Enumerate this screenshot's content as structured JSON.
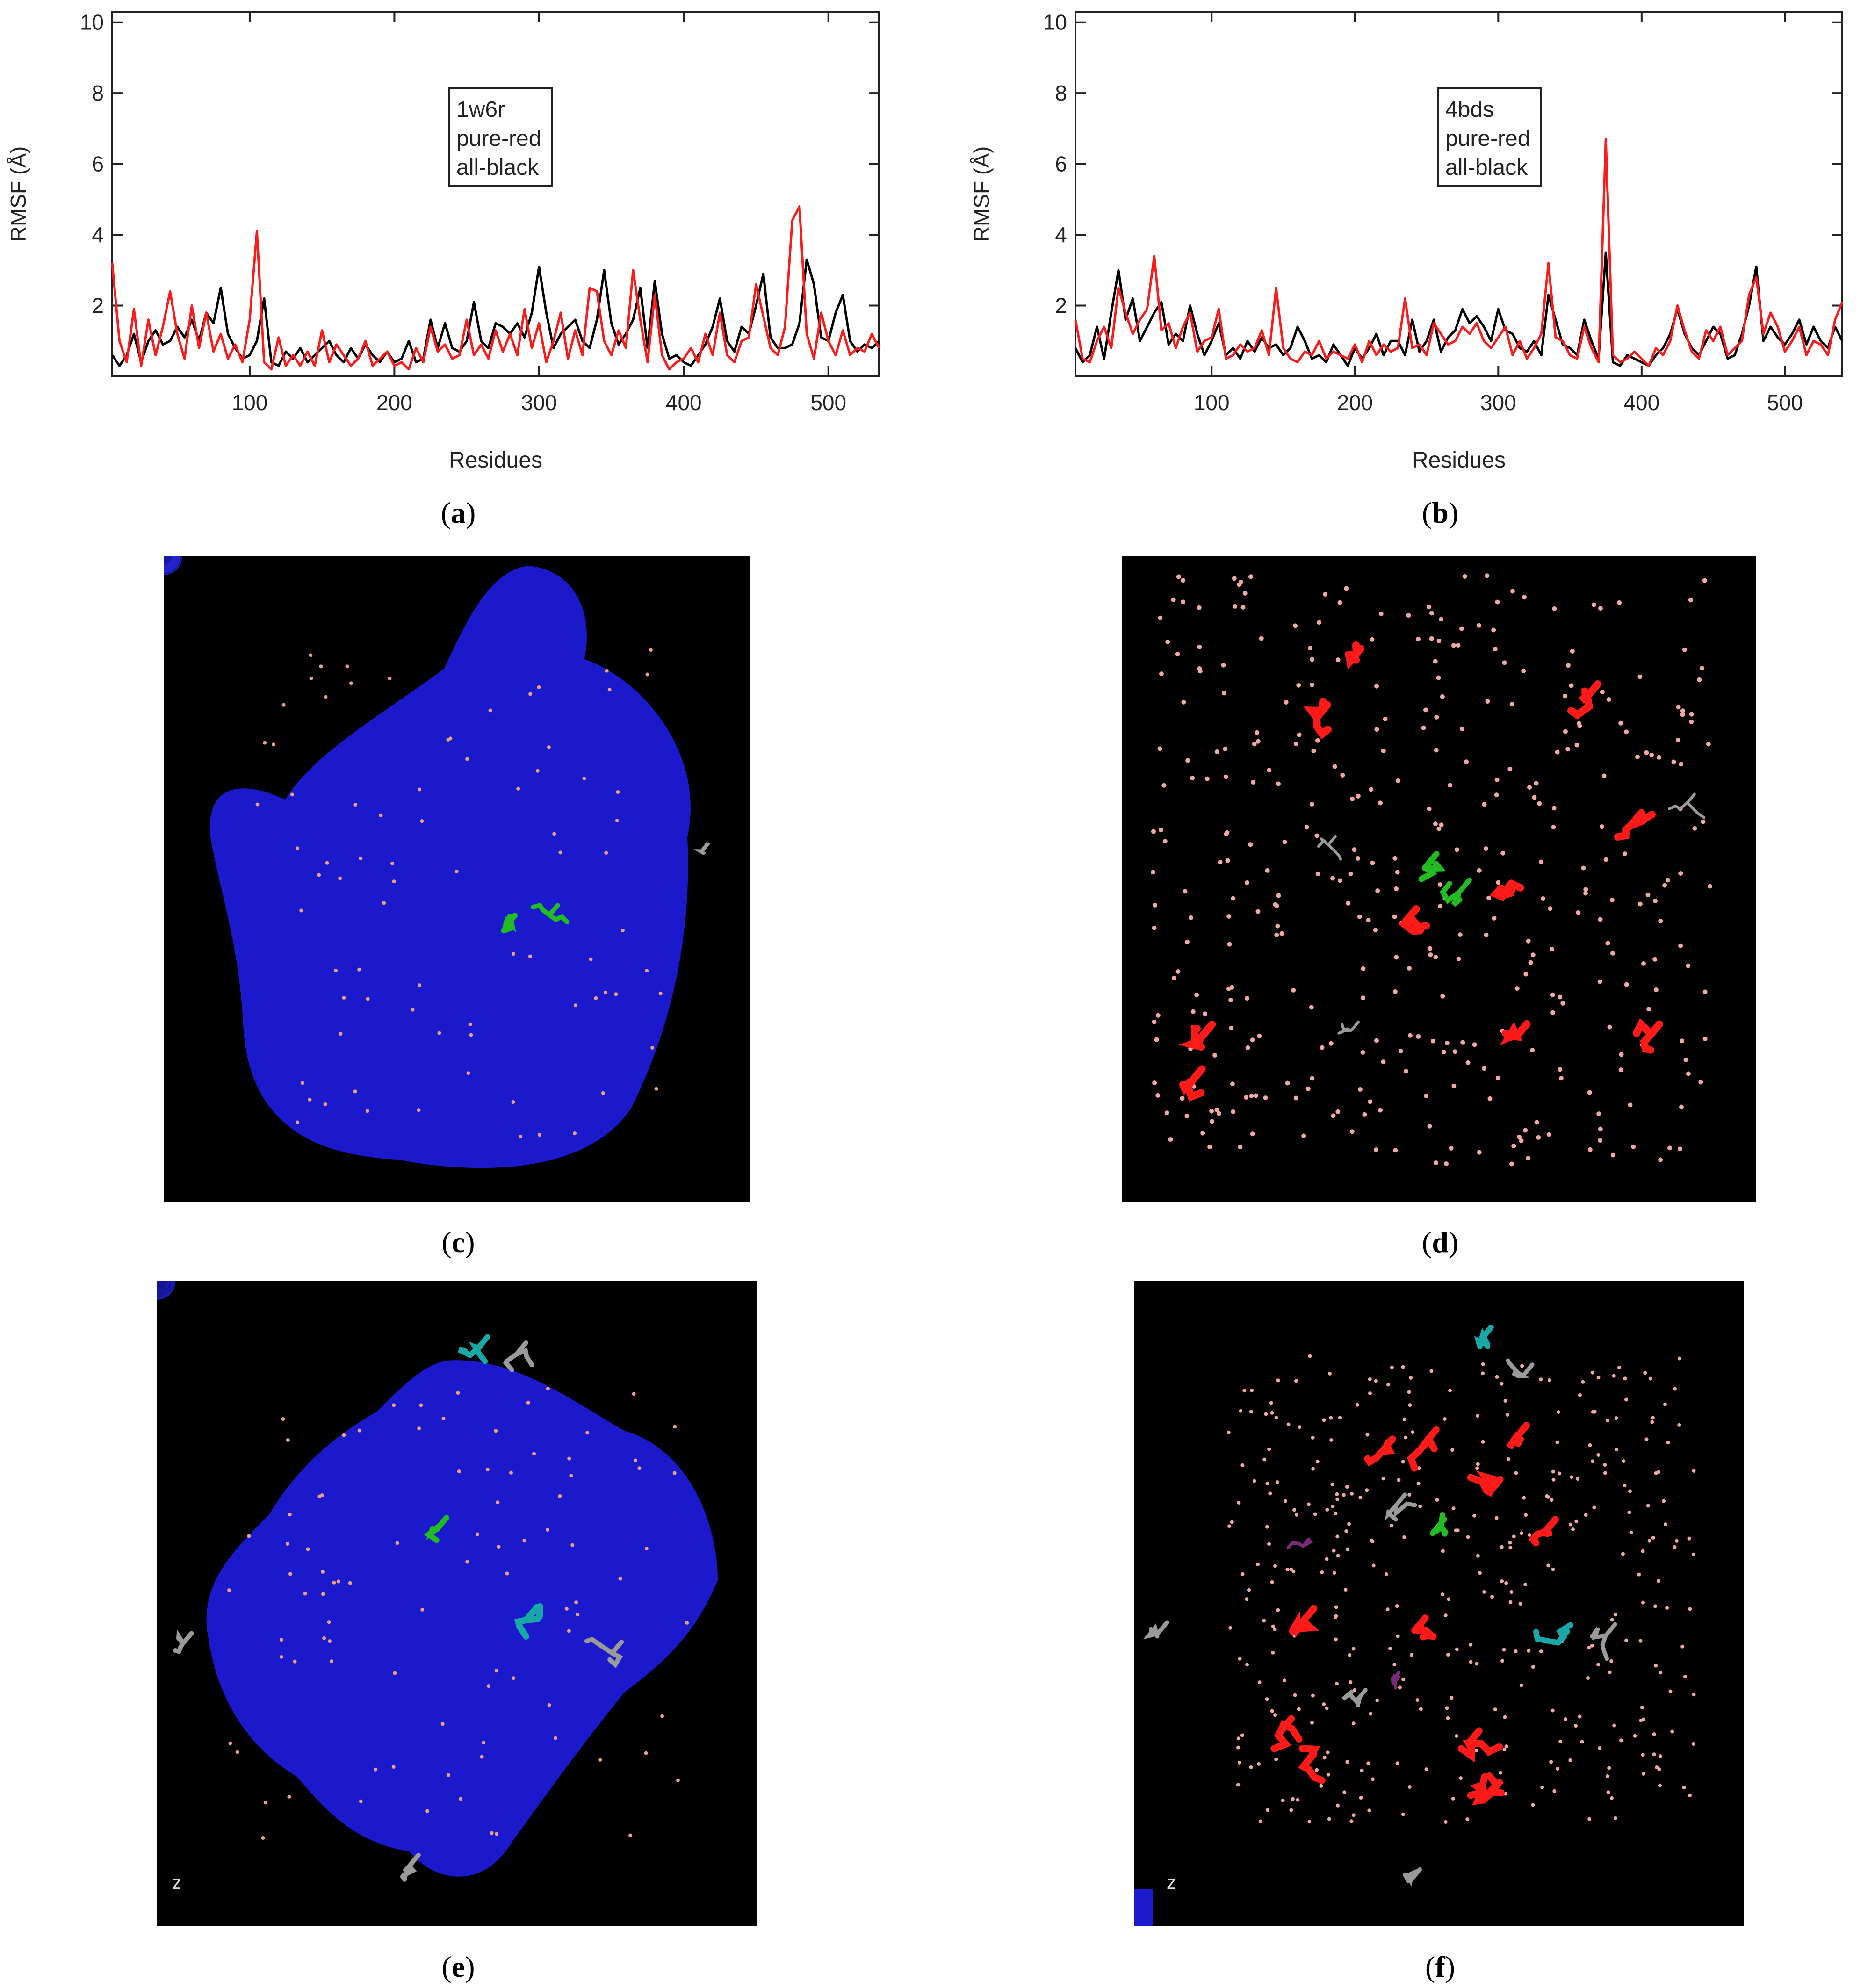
{
  "figure": {
    "captions": [
      {
        "pre": "(",
        "letter": "a",
        "post": ")"
      },
      {
        "pre": "(",
        "letter": "b",
        "post": ")"
      },
      {
        "pre": "(",
        "letter": "c",
        "post": ")"
      },
      {
        "pre": "(",
        "letter": "d",
        "post": ")"
      },
      {
        "pre": "(",
        "letter": "e",
        "post": ")"
      },
      {
        "pre": "(",
        "letter": "f",
        "post": ")"
      }
    ],
    "renders": {
      "c": {
        "surface_color": "#1a1acc",
        "ligand_color": "#22bb22",
        "dot_color": "#e8a080"
      },
      "d": {
        "residue_color": "#ff1a1a",
        "ligand_color": "#22bb22",
        "dot_color": "#f0a8a0",
        "extra_color": "#9a9a9a"
      },
      "e": {
        "surface_color": "#1a1acc",
        "ligand_color": "#22bb22",
        "sugar_color": "#19a8a8",
        "extra_color": "#9a9a9a",
        "axis_label": "z"
      },
      "f": {
        "residue_color": "#ff1a1a",
        "ligand_color": "#22bb22",
        "sugar_color": "#19a8a8",
        "extra_color": "#9a9a9a",
        "purple_color": "#7a2a7a",
        "axis_label": "z"
      }
    }
  },
  "chart_data": [
    {
      "type": "line",
      "legend": [
        "1w6r",
        "pure-red",
        "all-black"
      ],
      "xlabel": "Residues",
      "ylabel": "RMSF (Å)",
      "xlim": [
        5,
        535
      ],
      "ylim": [
        0,
        10.3
      ],
      "xticks": [
        100,
        200,
        300,
        400,
        500
      ],
      "yticks": [
        2,
        4,
        6,
        8,
        10
      ],
      "series": [
        {
          "color": "#000000",
          "x": [
            5,
            10,
            15,
            20,
            25,
            30,
            35,
            40,
            45,
            50,
            55,
            60,
            65,
            70,
            75,
            80,
            85,
            90,
            95,
            100,
            105,
            110,
            115,
            120,
            125,
            130,
            135,
            140,
            145,
            150,
            155,
            160,
            165,
            170,
            175,
            180,
            185,
            190,
            195,
            200,
            205,
            210,
            215,
            220,
            225,
            230,
            235,
            240,
            245,
            250,
            255,
            260,
            265,
            270,
            275,
            280,
            285,
            290,
            295,
            300,
            305,
            310,
            315,
            320,
            325,
            330,
            335,
            340,
            345,
            350,
            355,
            360,
            365,
            370,
            375,
            380,
            385,
            390,
            395,
            400,
            405,
            410,
            415,
            420,
            425,
            430,
            435,
            440,
            445,
            450,
            455,
            460,
            465,
            470,
            475,
            480,
            485,
            490,
            495,
            500,
            505,
            510,
            515,
            520,
            525,
            530,
            535
          ],
          "y": [
            0.6,
            0.3,
            0.6,
            1.2,
            0.4,
            1.0,
            1.3,
            0.9,
            1.0,
            1.4,
            1.1,
            1.6,
            1.0,
            1.8,
            1.5,
            2.5,
            1.2,
            0.8,
            0.5,
            0.6,
            1.0,
            2.2,
            0.4,
            0.3,
            0.7,
            0.5,
            0.8,
            0.4,
            0.6,
            0.8,
            1.0,
            0.6,
            0.4,
            0.8,
            0.5,
            0.9,
            0.6,
            0.4,
            0.7,
            0.4,
            0.5,
            1.0,
            0.4,
            0.5,
            1.6,
            0.8,
            1.5,
            0.8,
            0.7,
            1.0,
            2.1,
            1.0,
            0.8,
            1.5,
            1.4,
            1.2,
            1.5,
            1.1,
            1.8,
            3.1,
            1.8,
            0.8,
            1.2,
            1.4,
            1.6,
            1.0,
            0.8,
            1.6,
            3.0,
            1.5,
            0.9,
            1.2,
            1.6,
            2.5,
            0.8,
            2.7,
            1.2,
            0.5,
            0.6,
            0.4,
            0.3,
            0.6,
            0.9,
            1.4,
            2.2,
            1.0,
            0.7,
            1.4,
            1.2,
            2.0,
            2.9,
            1.1,
            0.8,
            0.8,
            0.9,
            1.5,
            3.3,
            2.6,
            1.1,
            1.0,
            1.8,
            2.3,
            1.0,
            0.7,
            0.9,
            0.8,
            1.0
          ]
        },
        {
          "color": "#ff1a1a",
          "x": [
            5,
            10,
            15,
            20,
            25,
            30,
            35,
            40,
            45,
            50,
            55,
            60,
            65,
            70,
            75,
            80,
            85,
            90,
            95,
            100,
            105,
            110,
            115,
            120,
            125,
            130,
            135,
            140,
            145,
            150,
            155,
            160,
            165,
            170,
            175,
            180,
            185,
            190,
            195,
            200,
            205,
            210,
            215,
            220,
            225,
            230,
            235,
            240,
            245,
            250,
            255,
            260,
            265,
            270,
            275,
            280,
            285,
            290,
            295,
            300,
            305,
            310,
            315,
            320,
            325,
            330,
            335,
            340,
            345,
            350,
            355,
            360,
            365,
            370,
            375,
            380,
            385,
            390,
            395,
            400,
            405,
            410,
            415,
            420,
            425,
            430,
            435,
            440,
            445,
            450,
            455,
            460,
            465,
            470,
            475,
            480,
            485,
            490,
            495,
            500,
            505,
            510,
            515,
            520,
            525,
            530,
            535
          ],
          "y": [
            3.2,
            1.0,
            0.4,
            1.9,
            0.3,
            1.6,
            0.6,
            1.4,
            2.4,
            1.2,
            0.5,
            2.0,
            0.8,
            1.8,
            0.7,
            1.2,
            0.5,
            0.9,
            0.4,
            1.6,
            4.1,
            0.4,
            0.2,
            1.1,
            0.3,
            0.6,
            0.3,
            0.7,
            0.3,
            1.3,
            0.4,
            0.9,
            0.6,
            0.3,
            0.5,
            1.0,
            0.3,
            0.5,
            0.7,
            0.3,
            0.4,
            0.2,
            0.8,
            0.4,
            1.4,
            0.7,
            0.9,
            0.5,
            0.6,
            1.6,
            0.6,
            0.9,
            0.5,
            1.3,
            0.7,
            1.2,
            0.6,
            1.9,
            0.8,
            1.5,
            0.4,
            1.0,
            1.8,
            0.5,
            1.3,
            0.6,
            2.5,
            2.4,
            1.0,
            0.6,
            1.3,
            0.8,
            3.0,
            1.6,
            0.4,
            2.3,
            0.6,
            0.2,
            0.4,
            0.5,
            0.8,
            0.4,
            1.2,
            0.6,
            1.8,
            0.6,
            0.4,
            1.0,
            1.1,
            2.6,
            1.7,
            0.8,
            0.6,
            1.4,
            4.4,
            4.8,
            1.2,
            0.5,
            1.8,
            1.0,
            0.6,
            1.3,
            0.6,
            0.8,
            0.7,
            1.2,
            0.8
          ]
        }
      ]
    },
    {
      "type": "line",
      "legend": [
        "4bds",
        "pure-red",
        "all-black"
      ],
      "xlabel": "Residues",
      "ylabel": "RMSF (Å)",
      "xlim": [
        5,
        540
      ],
      "ylim": [
        0,
        10.3
      ],
      "xticks": [
        100,
        200,
        300,
        400,
        500
      ],
      "yticks": [
        2,
        4,
        6,
        8,
        10
      ],
      "series": [
        {
          "color": "#000000",
          "x": [
            5,
            10,
            15,
            20,
            25,
            30,
            35,
            40,
            45,
            50,
            55,
            60,
            65,
            70,
            75,
            80,
            85,
            90,
            95,
            100,
            105,
            110,
            115,
            120,
            125,
            130,
            135,
            140,
            145,
            150,
            155,
            160,
            165,
            170,
            175,
            180,
            185,
            190,
            195,
            200,
            205,
            210,
            215,
            220,
            225,
            230,
            235,
            240,
            245,
            250,
            255,
            260,
            265,
            270,
            275,
            280,
            285,
            290,
            295,
            300,
            305,
            310,
            315,
            320,
            325,
            330,
            335,
            340,
            345,
            350,
            355,
            360,
            365,
            370,
            375,
            380,
            385,
            390,
            395,
            400,
            405,
            410,
            415,
            420,
            425,
            430,
            435,
            440,
            445,
            450,
            455,
            460,
            465,
            470,
            475,
            480,
            485,
            490,
            495,
            500,
            505,
            510,
            515,
            520,
            525,
            530,
            535,
            540
          ],
          "y": [
            0.8,
            0.4,
            0.6,
            1.4,
            0.5,
            1.8,
            3.0,
            1.6,
            2.2,
            1.0,
            1.4,
            1.8,
            2.1,
            0.9,
            1.2,
            1.0,
            2.0,
            1.2,
            0.6,
            1.0,
            1.5,
            0.6,
            0.8,
            0.5,
            1.0,
            0.7,
            1.1,
            0.8,
            0.9,
            0.6,
            0.8,
            1.4,
            1.0,
            0.5,
            0.6,
            0.4,
            0.9,
            0.6,
            0.3,
            0.8,
            0.5,
            0.8,
            1.2,
            0.6,
            1.0,
            1.0,
            0.6,
            1.6,
            0.7,
            1.0,
            1.6,
            0.7,
            1.1,
            1.3,
            1.9,
            1.5,
            1.7,
            1.4,
            1.0,
            1.9,
            1.3,
            1.2,
            0.8,
            0.7,
            1.0,
            0.6,
            2.3,
            1.6,
            0.9,
            0.8,
            0.6,
            1.6,
            1.0,
            0.5,
            3.5,
            0.4,
            0.3,
            0.6,
            0.5,
            0.4,
            0.3,
            0.6,
            0.8,
            1.2,
            1.9,
            1.2,
            0.8,
            0.6,
            1.0,
            1.4,
            1.2,
            0.5,
            0.6,
            1.2,
            2.0,
            3.1,
            1.0,
            1.4,
            1.1,
            0.9,
            1.2,
            1.6,
            0.9,
            1.4,
            1.0,
            0.8,
            1.4,
            1.0
          ]
        },
        {
          "color": "#ff1a1a",
          "x": [
            5,
            10,
            15,
            20,
            25,
            30,
            35,
            40,
            45,
            50,
            55,
            60,
            65,
            70,
            75,
            80,
            85,
            90,
            95,
            100,
            105,
            110,
            115,
            120,
            125,
            130,
            135,
            140,
            145,
            150,
            155,
            160,
            165,
            170,
            175,
            180,
            185,
            190,
            195,
            200,
            205,
            210,
            215,
            220,
            225,
            230,
            235,
            240,
            245,
            250,
            255,
            260,
            265,
            270,
            275,
            280,
            285,
            290,
            295,
            300,
            305,
            310,
            315,
            320,
            325,
            330,
            335,
            340,
            345,
            350,
            355,
            360,
            365,
            370,
            375,
            380,
            385,
            390,
            395,
            400,
            405,
            410,
            415,
            420,
            425,
            430,
            435,
            440,
            445,
            450,
            455,
            460,
            465,
            470,
            475,
            480,
            485,
            490,
            495,
            500,
            505,
            510,
            515,
            520,
            525,
            530,
            535,
            540
          ],
          "y": [
            1.6,
            0.5,
            0.4,
            1.0,
            1.4,
            0.8,
            2.5,
            1.8,
            1.2,
            1.6,
            1.9,
            3.4,
            1.3,
            1.5,
            0.8,
            1.4,
            1.8,
            0.7,
            1.0,
            1.1,
            1.9,
            0.5,
            0.6,
            0.9,
            0.7,
            0.8,
            1.3,
            0.6,
            2.5,
            0.8,
            0.5,
            0.4,
            0.7,
            0.6,
            1.0,
            0.5,
            0.7,
            0.6,
            0.5,
            0.9,
            0.4,
            1.0,
            0.6,
            0.9,
            0.7,
            0.8,
            2.2,
            0.8,
            0.9,
            0.6,
            1.5,
            1.2,
            0.9,
            1.0,
            1.4,
            1.2,
            1.5,
            1.0,
            0.8,
            1.1,
            1.4,
            0.6,
            1.0,
            0.5,
            0.8,
            1.2,
            3.2,
            1.1,
            1.0,
            0.6,
            0.5,
            1.4,
            0.8,
            0.4,
            6.7,
            0.6,
            0.4,
            0.5,
            0.7,
            0.5,
            0.3,
            0.8,
            0.6,
            1.0,
            2.0,
            1.3,
            0.7,
            0.5,
            1.3,
            1.0,
            1.4,
            0.6,
            0.8,
            1.0,
            2.3,
            2.8,
            1.2,
            1.8,
            1.4,
            0.7,
            1.0,
            1.4,
            0.6,
            1.0,
            0.9,
            0.6,
            1.6,
            2.1
          ]
        }
      ]
    }
  ]
}
